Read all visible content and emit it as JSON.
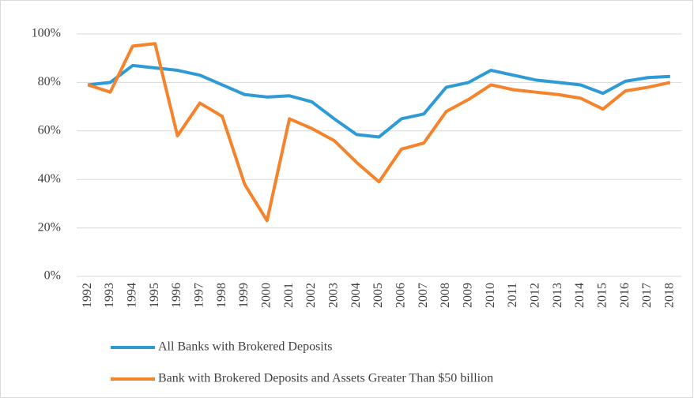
{
  "chart_data": {
    "type": "line",
    "categories": [
      "1992",
      "1993",
      "1994",
      "1995",
      "1996",
      "1997",
      "1998",
      "1999",
      "2000",
      "2001",
      "2002",
      "2003",
      "2004",
      "2005",
      "2006",
      "2007",
      "2008",
      "2009",
      "2010",
      "2011",
      "2012",
      "2013",
      "2014",
      "2015",
      "2016",
      "2017",
      "2018"
    ],
    "series": [
      {
        "name": "All Banks with Brokered Deposits",
        "color": "#2e9bd6",
        "values": [
          79,
          80,
          87,
          86,
          85,
          83,
          79,
          75,
          74,
          74.5,
          72,
          65,
          58.5,
          57.5,
          65,
          67,
          78,
          80,
          85,
          83,
          81,
          80,
          79,
          75.5,
          80.5,
          82,
          82.5
        ]
      },
      {
        "name": "Bank with Brokered Deposits and Assets Greater Than $50 billion",
        "color": "#f5832b",
        "values": [
          79,
          76,
          95,
          96,
          58,
          71.5,
          66,
          38,
          23,
          65,
          61,
          56,
          47,
          39,
          52.5,
          55,
          68,
          73,
          79,
          77,
          76,
          75,
          73.5,
          69,
          76.5,
          78,
          80
        ]
      }
    ],
    "ylim": [
      0,
      100
    ],
    "yticks": [
      {
        "value": 0,
        "label": "0%"
      },
      {
        "value": 20,
        "label": "20%"
      },
      {
        "value": 40,
        "label": "40%"
      },
      {
        "value": 60,
        "label": "60%"
      },
      {
        "value": 80,
        "label": "80%"
      },
      {
        "value": 100,
        "label": "100%"
      }
    ],
    "grid": true
  }
}
